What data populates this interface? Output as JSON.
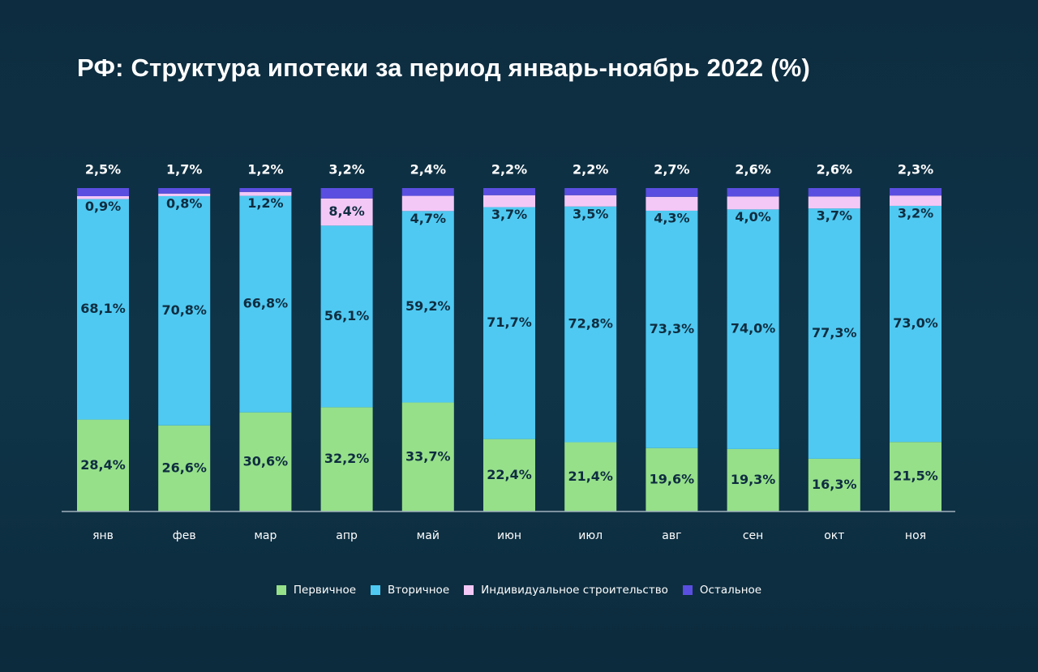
{
  "title": "РФ: Структура ипотеки за период январь-ноябрь 2022 (%)",
  "colors": {
    "background": "#0f3448",
    "primary": "#96e08a",
    "secondary": "#4fc9f2",
    "individual": "#f3c8f7",
    "other": "#5a4ee0",
    "axis": "#9fb1bd",
    "segment_text": "#0f2d40",
    "top_text": "#ffffff"
  },
  "chart_data": {
    "type": "bar",
    "stacked": true,
    "title": "РФ: Структура ипотеки за период январь-ноябрь 2022 (%)",
    "categories": [
      "янв",
      "фев",
      "мар",
      "апр",
      "май",
      "июн",
      "июл",
      "авг",
      "сен",
      "окт",
      "ноя"
    ],
    "series": [
      {
        "name": "Первичное",
        "color": "#96e08a",
        "values": [
          28.4,
          26.6,
          30.6,
          32.2,
          33.7,
          22.4,
          21.4,
          19.6,
          19.3,
          16.3,
          21.5
        ],
        "labels": [
          "28,4%",
          "26,6%",
          "30,6%",
          "32,2%",
          "33,7%",
          "22,4%",
          "21,4%",
          "19,6%",
          "19,3%",
          "16,3%",
          "21,5%"
        ]
      },
      {
        "name": "Вторичное",
        "color": "#4fc9f2",
        "values": [
          68.1,
          70.8,
          66.8,
          56.1,
          59.2,
          71.7,
          72.8,
          73.3,
          74.0,
          77.3,
          73.0
        ],
        "labels": [
          "68,1%",
          "70,8%",
          "66,8%",
          "56,1%",
          "59,2%",
          "71,7%",
          "72,8%",
          "73,3%",
          "74,0%",
          "77,3%",
          "73,0%"
        ]
      },
      {
        "name": "Индивидуальное строительство",
        "color": "#f3c8f7",
        "values": [
          0.9,
          0.8,
          1.2,
          8.4,
          4.7,
          3.7,
          3.5,
          4.3,
          4.0,
          3.7,
          3.2
        ],
        "labels": [
          "0,9%",
          "0,8%",
          "1,2%",
          "8,4%",
          "4,7%",
          "3,7%",
          "3,5%",
          "4,3%",
          "4,0%",
          "3,7%",
          "3,2%"
        ]
      },
      {
        "name": "Остальное",
        "color": "#5a4ee0",
        "values": [
          2.5,
          1.7,
          1.2,
          3.2,
          2.4,
          2.2,
          2.2,
          2.7,
          2.6,
          2.6,
          2.3
        ],
        "labels": [
          "2,5%",
          "1,7%",
          "1,2%",
          "3,2%",
          "2,4%",
          "2,2%",
          "2,2%",
          "2,7%",
          "2,6%",
          "2,6%",
          "2,3%"
        ]
      }
    ],
    "ylim": [
      0,
      100
    ],
    "legend_position": "bottom",
    "grid": false
  }
}
